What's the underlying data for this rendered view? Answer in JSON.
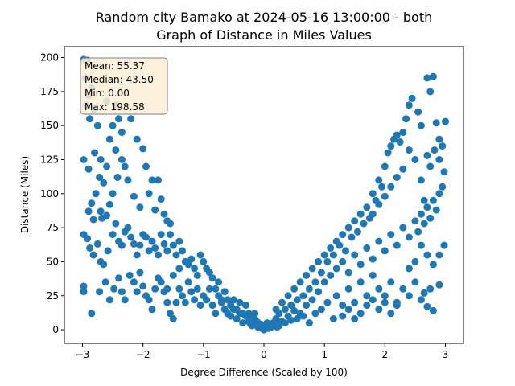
{
  "chart_data": {
    "type": "scatter",
    "title_line1": "Random city Bamako at 2024-05-16 13:00:00  - both",
    "title_line2": "Graph of Distance in Miles Values",
    "xlabel": "Degree Difference (Scaled by 100)",
    "ylabel": "Distance (Miles)",
    "xlim": [
      -3.3,
      3.3
    ],
    "ylim": [
      -10,
      208
    ],
    "x_ticks": [
      -3,
      -2,
      -1,
      0,
      1,
      2,
      3
    ],
    "y_ticks": [
      0,
      25,
      50,
      75,
      100,
      125,
      150,
      175,
      200
    ],
    "grid": false,
    "point_color": "#1f77b4",
    "stats_box": {
      "placement": "top-left",
      "background": "#fbeed6",
      "lines": [
        "Mean: 55.37",
        "Median: 43.50",
        "Min: 0.00",
        "Max: 198.58"
      ]
    },
    "points": [
      [
        -2.98,
        198.6
      ],
      [
        -2.92,
        198
      ],
      [
        -2.95,
        185
      ],
      [
        -2.85,
        178
      ],
      [
        -2.9,
        172
      ],
      [
        -2.8,
        162
      ],
      [
        -2.94,
        165
      ],
      [
        -2.88,
        155
      ],
      [
        -2.75,
        150
      ],
      [
        -2.6,
        168
      ],
      [
        -2.45,
        165
      ],
      [
        -2.5,
        150
      ],
      [
        -2.4,
        155
      ],
      [
        -2.35,
        145
      ],
      [
        -2.55,
        140
      ],
      [
        -2.2,
        155
      ],
      [
        -2.1,
        140
      ],
      [
        -2.0,
        133
      ],
      [
        -2.3,
        120
      ],
      [
        -2.45,
        132
      ],
      [
        -2.98,
        125
      ],
      [
        -2.8,
        130
      ],
      [
        -2.7,
        125
      ],
      [
        -2.6,
        120
      ],
      [
        -2.9,
        118
      ],
      [
        -2.72,
        112
      ],
      [
        -2.65,
        108
      ],
      [
        -2.78,
        100
      ],
      [
        -2.85,
        93
      ],
      [
        -2.7,
        87
      ],
      [
        -2.6,
        84
      ],
      [
        -2.9,
        87
      ],
      [
        -2.82,
        81
      ],
      [
        -2.68,
        82
      ],
      [
        -2.55,
        92
      ],
      [
        -2.5,
        100
      ],
      [
        -2.42,
        112
      ],
      [
        -2.35,
        125
      ],
      [
        -2.25,
        110
      ],
      [
        -2.15,
        98
      ],
      [
        -2.05,
        90
      ],
      [
        -1.95,
        120
      ],
      [
        -1.9,
        100
      ],
      [
        -1.85,
        110
      ],
      [
        -1.75,
        110
      ],
      [
        -1.7,
        96
      ],
      [
        -1.8,
        88
      ],
      [
        -1.65,
        85
      ],
      [
        -1.6,
        80
      ],
      [
        -1.55,
        78
      ],
      [
        -2.98,
        70
      ],
      [
        -2.92,
        67
      ],
      [
        -2.88,
        60
      ],
      [
        -2.82,
        55
      ],
      [
        -2.75,
        63
      ],
      [
        -2.7,
        50
      ],
      [
        -2.65,
        48
      ],
      [
        -2.58,
        58
      ],
      [
        -2.5,
        70
      ],
      [
        -2.45,
        78
      ],
      [
        -2.4,
        65
      ],
      [
        -2.35,
        62
      ],
      [
        -2.3,
        72
      ],
      [
        -2.25,
        75
      ],
      [
        -2.2,
        68
      ],
      [
        -2.15,
        63
      ],
      [
        -2.1,
        55
      ],
      [
        -2.05,
        62
      ],
      [
        -2.0,
        70
      ],
      [
        -1.95,
        68
      ],
      [
        -1.9,
        58
      ],
      [
        -1.85,
        65
      ],
      [
        -1.8,
        60
      ],
      [
        -1.75,
        55
      ],
      [
        -1.7,
        70
      ],
      [
        -1.65,
        63
      ],
      [
        -1.6,
        58
      ],
      [
        -1.55,
        70
      ],
      [
        -1.5,
        62
      ],
      [
        -1.45,
        55
      ],
      [
        -1.4,
        65
      ],
      [
        -1.35,
        58
      ],
      [
        -1.3,
        50
      ],
      [
        -1.25,
        48
      ],
      [
        -1.2,
        52
      ],
      [
        -1.15,
        45
      ],
      [
        -1.1,
        40
      ],
      [
        -1.05,
        55
      ],
      [
        -1.0,
        50
      ],
      [
        -0.95,
        45
      ],
      [
        -2.98,
        32
      ],
      [
        -2.98,
        28
      ],
      [
        -2.85,
        12
      ],
      [
        -2.72,
        28
      ],
      [
        -2.62,
        35
      ],
      [
        -2.55,
        22
      ],
      [
        -2.48,
        30
      ],
      [
        -2.4,
        38
      ],
      [
        -2.35,
        28
      ],
      [
        -2.3,
        22
      ],
      [
        -2.22,
        40
      ],
      [
        -2.15,
        35
      ],
      [
        -2.1,
        28
      ],
      [
        -2.05,
        42
      ],
      [
        -2.0,
        32
      ],
      [
        -1.95,
        25
      ],
      [
        -1.9,
        22
      ],
      [
        -1.85,
        15
      ],
      [
        -1.8,
        30
      ],
      [
        -1.75,
        38
      ],
      [
        -1.7,
        35
      ],
      [
        -1.65,
        28
      ],
      [
        -1.6,
        20
      ],
      [
        -1.55,
        12
      ],
      [
        -1.5,
        8
      ],
      [
        -1.45,
        20
      ],
      [
        -1.4,
        30
      ],
      [
        -1.35,
        25
      ],
      [
        -1.3,
        20
      ],
      [
        -1.25,
        35
      ],
      [
        -1.2,
        28
      ],
      [
        -1.15,
        22
      ],
      [
        -1.1,
        30
      ],
      [
        -1.05,
        18
      ],
      [
        -1.0,
        25
      ],
      [
        -0.95,
        22
      ],
      [
        -0.9,
        30
      ],
      [
        -0.85,
        18
      ],
      [
        -0.8,
        12
      ],
      [
        -0.75,
        25
      ],
      [
        -0.7,
        20
      ],
      [
        -0.65,
        15
      ],
      [
        -0.6,
        22
      ],
      [
        -0.55,
        10
      ],
      [
        -0.5,
        15
      ],
      [
        -0.45,
        8
      ],
      [
        -0.4,
        12
      ],
      [
        -0.35,
        5
      ],
      [
        -0.3,
        10
      ],
      [
        -0.25,
        6
      ],
      [
        -0.2,
        3
      ],
      [
        -0.15,
        8
      ],
      [
        -0.1,
        2
      ],
      [
        -0.05,
        4
      ],
      [
        0.0,
        0
      ],
      [
        0.02,
        1
      ],
      [
        0.05,
        2
      ],
      [
        -0.03,
        1
      ],
      [
        0.1,
        3
      ],
      [
        0.15,
        5
      ],
      [
        -0.9,
        42
      ],
      [
        -0.85,
        38
      ],
      [
        -0.8,
        30
      ],
      [
        -0.75,
        35
      ],
      [
        -0.7,
        22
      ],
      [
        -0.65,
        28
      ],
      [
        -0.6,
        12
      ],
      [
        -0.55,
        18
      ],
      [
        -0.5,
        22
      ],
      [
        -0.45,
        15
      ],
      [
        -0.4,
        20
      ],
      [
        -0.35,
        12
      ],
      [
        -0.3,
        18
      ],
      [
        -0.25,
        12
      ],
      [
        -0.2,
        8
      ],
      [
        -0.15,
        12
      ],
      [
        -0.1,
        5
      ],
      [
        -1.6,
        30
      ],
      [
        -1.5,
        40
      ],
      [
        -1.4,
        45
      ],
      [
        0.2,
        8
      ],
      [
        0.25,
        12
      ],
      [
        0.3,
        6
      ],
      [
        0.35,
        15
      ],
      [
        0.4,
        10
      ],
      [
        0.45,
        18
      ],
      [
        0.5,
        14
      ],
      [
        0.55,
        22
      ],
      [
        0.6,
        12
      ],
      [
        0.65,
        25
      ],
      [
        0.7,
        18
      ],
      [
        0.75,
        30
      ],
      [
        0.8,
        22
      ],
      [
        0.85,
        35
      ],
      [
        0.9,
        28
      ],
      [
        0.95,
        42
      ],
      [
        1.0,
        35
      ],
      [
        1.05,
        50
      ],
      [
        1.1,
        40
      ],
      [
        1.15,
        55
      ],
      [
        0.2,
        15
      ],
      [
        0.3,
        20
      ],
      [
        0.4,
        25
      ],
      [
        0.5,
        30
      ],
      [
        0.6,
        35
      ],
      [
        0.7,
        40
      ],
      [
        0.8,
        45
      ],
      [
        0.9,
        50
      ],
      [
        1.0,
        55
      ],
      [
        1.1,
        60
      ],
      [
        0.25,
        3
      ],
      [
        0.35,
        5
      ],
      [
        0.45,
        7
      ],
      [
        0.55,
        8
      ],
      [
        0.65,
        10
      ],
      [
        0.75,
        5
      ],
      [
        0.85,
        12
      ],
      [
        0.95,
        15
      ],
      [
        1.05,
        20
      ],
      [
        1.15,
        8
      ],
      [
        1.2,
        65
      ],
      [
        1.25,
        62
      ],
      [
        1.3,
        70
      ],
      [
        1.35,
        58
      ],
      [
        1.4,
        75
      ],
      [
        1.45,
        68
      ],
      [
        1.5,
        80
      ],
      [
        1.55,
        72
      ],
      [
        1.6,
        85
      ],
      [
        1.65,
        78
      ],
      [
        1.7,
        90
      ],
      [
        1.75,
        82
      ],
      [
        1.8,
        100
      ],
      [
        1.85,
        95
      ],
      [
        1.9,
        110
      ],
      [
        1.95,
        105
      ],
      [
        2.0,
        120
      ],
      [
        2.05,
        130
      ],
      [
        2.1,
        135
      ],
      [
        2.15,
        140
      ],
      [
        2.2,
        143
      ],
      [
        2.25,
        138
      ],
      [
        2.3,
        145
      ],
      [
        2.35,
        155
      ],
      [
        2.4,
        165
      ],
      [
        2.45,
        170
      ],
      [
        2.55,
        160
      ],
      [
        2.6,
        150
      ],
      [
        2.7,
        185
      ],
      [
        2.8,
        186
      ],
      [
        2.75,
        175
      ],
      [
        2.85,
        152
      ],
      [
        2.9,
        140
      ],
      [
        2.95,
        135
      ],
      [
        3.0,
        153
      ],
      [
        2.98,
        116
      ],
      [
        2.9,
        125
      ],
      [
        2.82,
        132
      ],
      [
        2.75,
        120
      ],
      [
        2.7,
        128
      ],
      [
        1.2,
        45
      ],
      [
        1.3,
        50
      ],
      [
        1.4,
        42
      ],
      [
        1.5,
        55
      ],
      [
        1.6,
        48
      ],
      [
        1.7,
        60
      ],
      [
        1.8,
        52
      ],
      [
        1.9,
        65
      ],
      [
        2.0,
        58
      ],
      [
        2.1,
        70
      ],
      [
        2.2,
        62
      ],
      [
        2.3,
        75
      ],
      [
        2.4,
        68
      ],
      [
        2.5,
        80
      ],
      [
        2.55,
        72
      ],
      [
        2.6,
        85
      ],
      [
        2.65,
        78
      ],
      [
        2.7,
        90
      ],
      [
        2.75,
        82
      ],
      [
        2.8,
        95
      ],
      [
        2.85,
        88
      ],
      [
        2.9,
        100
      ],
      [
        2.95,
        105
      ],
      [
        2.98,
        62
      ],
      [
        2.9,
        55
      ],
      [
        2.8,
        48
      ],
      [
        2.7,
        55
      ],
      [
        2.6,
        62
      ],
      [
        2.5,
        50
      ],
      [
        2.4,
        45
      ],
      [
        1.2,
        25
      ],
      [
        1.3,
        18
      ],
      [
        1.4,
        30
      ],
      [
        1.5,
        20
      ],
      [
        1.6,
        35
      ],
      [
        1.7,
        25
      ],
      [
        1.8,
        40
      ],
      [
        1.9,
        30
      ],
      [
        2.0,
        25
      ],
      [
        2.1,
        35
      ],
      [
        2.2,
        20
      ],
      [
        2.3,
        30
      ],
      [
        2.4,
        25
      ],
      [
        2.5,
        35
      ],
      [
        2.6,
        22
      ],
      [
        2.65,
        27
      ],
      [
        2.7,
        17
      ],
      [
        2.75,
        30
      ],
      [
        2.8,
        14
      ],
      [
        2.9,
        33
      ],
      [
        1.3,
        10
      ],
      [
        1.4,
        15
      ],
      [
        1.5,
        8
      ],
      [
        1.6,
        12
      ],
      [
        1.7,
        18
      ],
      [
        1.8,
        22
      ],
      [
        1.9,
        15
      ],
      [
        2.0,
        20
      ],
      [
        2.1,
        12
      ],
      [
        2.2,
        18
      ],
      [
        2.4,
        132
      ],
      [
        2.5,
        125
      ],
      [
        2.3,
        118
      ],
      [
        2.2,
        112
      ],
      [
        2.1,
        105
      ],
      [
        2.0,
        98
      ],
      [
        1.9,
        92
      ],
      [
        1.8,
        85
      ],
      [
        2.6,
        110
      ],
      [
        2.65,
        95
      ],
      [
        -0.05,
        2
      ],
      [
        0.05,
        5
      ],
      [
        0.08,
        1
      ],
      [
        -0.08,
        3
      ],
      [
        0.12,
        2
      ],
      [
        -0.12,
        6
      ],
      [
        0.18,
        4
      ],
      [
        -0.18,
        5
      ],
      [
        0.22,
        2
      ],
      [
        -0.22,
        4
      ]
    ]
  }
}
